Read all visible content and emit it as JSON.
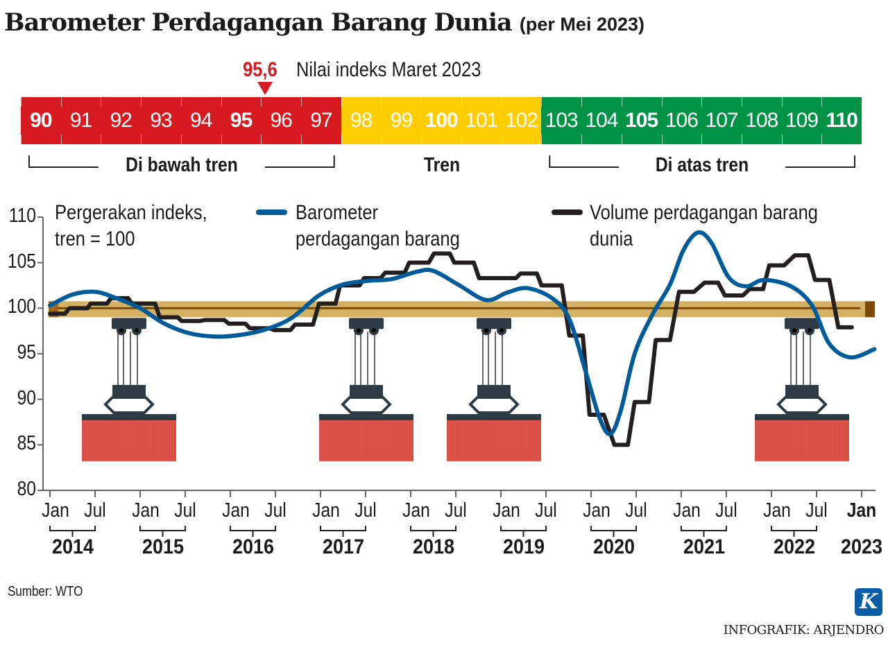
{
  "header": {
    "title": "Barometer Perdagangan Barang Dunia",
    "subtitle": "(per Mei 2023)"
  },
  "scale": {
    "marker_value": "95,6",
    "marker_text": "Nilai indeks Maret 2023",
    "marker_numeric": 95.6,
    "cells": [
      90,
      91,
      92,
      93,
      94,
      95,
      96,
      97,
      98,
      99,
      100,
      101,
      102,
      103,
      104,
      105,
      106,
      107,
      108,
      109,
      110
    ],
    "bold": [
      90,
      95,
      100,
      105,
      110
    ],
    "zones": [
      {
        "label": "Di bawah tren",
        "from": 90,
        "to": 97,
        "color": "#d71920"
      },
      {
        "label": "Tren",
        "from": 98,
        "to": 102,
        "color": "#ffcc00"
      },
      {
        "label": "Di atas tren",
        "from": 103,
        "to": 110,
        "color": "#009245"
      }
    ]
  },
  "footer": {
    "source": "Sumber: WTO",
    "credit": "INFOGRAFIK: ARJENDRO",
    "logo": "K"
  },
  "chart_data": {
    "type": "line",
    "title": "Pergerakan indeks, tren = 100",
    "xlabel": "",
    "ylabel": "",
    "x_unit": "months since Jan 2014",
    "ylim": [
      80,
      110
    ],
    "yticks": [
      110,
      105,
      100,
      95,
      90,
      85,
      80
    ],
    "ytick_labels": [
      "110",
      "105",
      "100",
      "95",
      "90",
      "85",
      "80"
    ],
    "month_ticks": [
      {
        "year": "2014",
        "jan": 0,
        "jul": 6
      },
      {
        "year": "2015",
        "jan": 12,
        "jul": 18
      },
      {
        "year": "2016",
        "jan": 24,
        "jul": 30
      },
      {
        "year": "2017",
        "jan": 36,
        "jul": 42
      },
      {
        "year": "2018",
        "jan": 48,
        "jul": 54
      },
      {
        "year": "2019",
        "jan": 60,
        "jul": 66
      },
      {
        "year": "2020",
        "jan": 72,
        "jul": 78
      },
      {
        "year": "2021",
        "jan": 84,
        "jul": 90
      },
      {
        "year": "2022",
        "jan": 96,
        "jul": 102
      }
    ],
    "month_labels": {
      "jan": "Jan",
      "jul": "Jul"
    },
    "final_tick": {
      "month": 108,
      "label": "Jan",
      "year": "2023"
    },
    "trend_value": 100,
    "legend_placement": "top",
    "series": [
      {
        "name": "Barometer perdagangan barang",
        "color": "#005b9a",
        "points": [
          [
            0,
            100.3
          ],
          [
            3,
            101.5
          ],
          [
            6,
            101.8
          ],
          [
            8.5,
            101.2
          ],
          [
            12,
            100
          ],
          [
            15,
            98.4
          ],
          [
            18.3,
            97.3
          ],
          [
            21.5,
            96.9
          ],
          [
            24.7,
            97.0
          ],
          [
            28.4,
            97.6
          ],
          [
            32.1,
            98.9
          ],
          [
            35.8,
            101.4
          ],
          [
            39,
            102.6
          ],
          [
            42.3,
            103
          ],
          [
            45.5,
            103.2
          ],
          [
            48.8,
            104
          ],
          [
            51,
            104.1
          ],
          [
            54.3,
            102.6
          ],
          [
            58,
            100.9
          ],
          [
            60.8,
            101.7
          ],
          [
            63.5,
            102.2
          ],
          [
            66.8,
            101.1
          ],
          [
            69.1,
            98.8
          ],
          [
            71.4,
            92.7
          ],
          [
            73.2,
            87.8
          ],
          [
            74.6,
            86.2
          ],
          [
            76,
            88.9
          ],
          [
            77.8,
            95
          ],
          [
            80.1,
            99.2
          ],
          [
            82.5,
            102.6
          ],
          [
            84.3,
            106.4
          ],
          [
            86.2,
            108.3
          ],
          [
            88,
            107.2
          ],
          [
            90.3,
            103.4
          ],
          [
            92.6,
            102.4
          ],
          [
            95,
            103.1
          ],
          [
            98.6,
            102.4
          ],
          [
            101.4,
            100.3
          ],
          [
            103.7,
            96.1
          ],
          [
            106.5,
            94.6
          ],
          [
            109.7,
            95.5
          ]
        ]
      },
      {
        "name": "Volume perdagangan barang dunia",
        "color": "#231f20",
        "points": [
          [
            0,
            99.4
          ],
          [
            2,
            99.4
          ],
          [
            2.6,
            100
          ],
          [
            5,
            100
          ],
          [
            5.4,
            100.5
          ],
          [
            7.6,
            100.5
          ],
          [
            8.1,
            101.1
          ],
          [
            10.4,
            101.1
          ],
          [
            10.9,
            100.5
          ],
          [
            14,
            100.5
          ],
          [
            14.6,
            99
          ],
          [
            17,
            99
          ],
          [
            17.5,
            98.6
          ],
          [
            20,
            98.6
          ],
          [
            20.6,
            98.7
          ],
          [
            23.2,
            98.7
          ],
          [
            23.8,
            98.3
          ],
          [
            26,
            98.3
          ],
          [
            26.6,
            97.8
          ],
          [
            29.2,
            97.8
          ],
          [
            29.8,
            97.6
          ],
          [
            32,
            97.6
          ],
          [
            32.6,
            98.2
          ],
          [
            35,
            98.2
          ],
          [
            35.8,
            100.5
          ],
          [
            38,
            100.5
          ],
          [
            38.6,
            102.5
          ],
          [
            41.2,
            102.5
          ],
          [
            41.8,
            103.3
          ],
          [
            44,
            103.3
          ],
          [
            44.6,
            103.9
          ],
          [
            47.2,
            103.9
          ],
          [
            47.8,
            105
          ],
          [
            50.4,
            105
          ],
          [
            51.1,
            106
          ],
          [
            53.2,
            106
          ],
          [
            53.8,
            105
          ],
          [
            56.4,
            105
          ],
          [
            57.1,
            103.3
          ],
          [
            62,
            103.3
          ],
          [
            62.6,
            103.8
          ],
          [
            64.8,
            103.8
          ],
          [
            65.4,
            102.5
          ],
          [
            68.1,
            102.5
          ],
          [
            69.1,
            97
          ],
          [
            70.9,
            97
          ],
          [
            71.8,
            88.3
          ],
          [
            73.7,
            88.3
          ],
          [
            75.1,
            85
          ],
          [
            76.9,
            85
          ],
          [
            77.8,
            89.7
          ],
          [
            79.7,
            89.7
          ],
          [
            80.6,
            96.5
          ],
          [
            82.5,
            96.5
          ],
          [
            83.7,
            101.8
          ],
          [
            85.7,
            101.8
          ],
          [
            87.1,
            102.8
          ],
          [
            88.9,
            102.8
          ],
          [
            89.8,
            101.4
          ],
          [
            92.2,
            101.4
          ],
          [
            93.1,
            102.1
          ],
          [
            94.9,
            102.1
          ],
          [
            95.7,
            104.7
          ],
          [
            97.7,
            104.7
          ],
          [
            99.1,
            105.8
          ],
          [
            100.9,
            105.8
          ],
          [
            101.8,
            103.1
          ],
          [
            103.7,
            103.1
          ],
          [
            104.9,
            97.9
          ],
          [
            106.7,
            97.9
          ]
        ]
      }
    ],
    "legend": [
      {
        "label": "Barometer perdagangan barang",
        "color": "#005b9a"
      },
      {
        "label": "Volume perdagangan barang dunia",
        "color": "#231f20"
      }
    ]
  }
}
